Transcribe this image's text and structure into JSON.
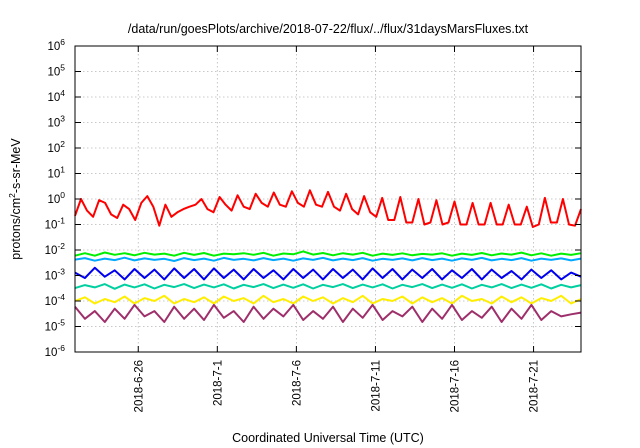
{
  "chart_data": {
    "type": "line",
    "title": "/data/run/goesPlots/archive/2018-07-22/flux/../flux/31daysMarsFluxes.txt",
    "xlabel": "Coordinated Universal Time (UTC)",
    "ylabel": {
      "pre": "protons/cm",
      "sup": "2",
      "post": "-s-sr-MeV"
    },
    "yscale": "log",
    "ylim": [
      1e-06,
      1000000.0
    ],
    "xlim": [
      "2018-06-22",
      "2018-07-24"
    ],
    "grid": true,
    "y_ticks": [
      {
        "base": "10",
        "exp": "-6"
      },
      {
        "base": "10",
        "exp": "-5"
      },
      {
        "base": "10",
        "exp": "-4"
      },
      {
        "base": "10",
        "exp": "-3"
      },
      {
        "base": "10",
        "exp": "-2"
      },
      {
        "base": "10",
        "exp": "-1"
      },
      {
        "base": "10",
        "exp": "0"
      },
      {
        "base": "10",
        "exp": "1"
      },
      {
        "base": "10",
        "exp": "2"
      },
      {
        "base": "10",
        "exp": "3"
      },
      {
        "base": "10",
        "exp": "4"
      },
      {
        "base": "10",
        "exp": "5"
      },
      {
        "base": "10",
        "exp": "6"
      }
    ],
    "x_ticks": [
      "2018-6-26",
      "2018-7-1",
      "2018-7-6",
      "2018-7-11",
      "2018-7-16",
      "2018-7-21"
    ],
    "series": [
      {
        "color": "#ff0000",
        "values": [
          0.22,
          1.0,
          0.35,
          0.2,
          0.9,
          0.7,
          0.25,
          0.18,
          0.6,
          0.4,
          0.15,
          0.7,
          1.3,
          0.5,
          0.09,
          0.6,
          0.2,
          0.3,
          0.4,
          0.5,
          0.6,
          1.0,
          0.4,
          0.3,
          1.2,
          0.6,
          0.35,
          1.4,
          0.5,
          0.4,
          1.6,
          0.7,
          0.5,
          1.8,
          0.6,
          0.5,
          2.0,
          0.7,
          0.5,
          2.2,
          0.6,
          0.5,
          1.9,
          0.5,
          0.35,
          1.6,
          0.4,
          0.25,
          1.3,
          0.3,
          0.2,
          1.1,
          0.15,
          0.15,
          1.2,
          0.12,
          0.12,
          1.0,
          0.1,
          0.12,
          0.9,
          0.1,
          0.12,
          0.8,
          0.1,
          0.1,
          0.7,
          0.1,
          0.1,
          0.7,
          0.1,
          0.1,
          0.6,
          0.1,
          0.1,
          0.5,
          0.08,
          0.1,
          1.1,
          0.12,
          0.12,
          1.0,
          0.1,
          0.09,
          0.4
        ]
      },
      {
        "color": "#00ee00",
        "values": [
          0.006,
          0.0075,
          0.006,
          0.008,
          0.0065,
          0.0075,
          0.0062,
          0.0078,
          0.0066,
          0.0072,
          0.006,
          0.0078,
          0.0064,
          0.0076,
          0.006,
          0.0072,
          0.0068,
          0.0075,
          0.0065,
          0.0078,
          0.006,
          0.0073,
          0.0068,
          0.0088,
          0.0066,
          0.0076,
          0.0062,
          0.0075,
          0.0066,
          0.0078,
          0.006,
          0.0072,
          0.0064,
          0.0074,
          0.0062,
          0.007,
          0.0066,
          0.0074,
          0.006,
          0.0072,
          0.0064,
          0.0076,
          0.0062,
          0.0073,
          0.0066,
          0.0079,
          0.0062,
          0.0074,
          0.006,
          0.0072,
          0.0064,
          0.0075
        ]
      },
      {
        "color": "#00a8ff",
        "values": [
          0.0042,
          0.0048,
          0.0038,
          0.0046,
          0.004,
          0.005,
          0.0039,
          0.0047,
          0.0041,
          0.0045,
          0.0037,
          0.0048,
          0.004,
          0.0046,
          0.0038,
          0.0049,
          0.0041,
          0.0045,
          0.0039,
          0.0048,
          0.004,
          0.0046,
          0.0038,
          0.0047,
          0.0041,
          0.0049,
          0.0039,
          0.0046,
          0.004,
          0.0048,
          0.0038,
          0.0045,
          0.0041,
          0.0047,
          0.0039,
          0.0048,
          0.004,
          0.0046,
          0.0038,
          0.0047,
          0.0041,
          0.0049,
          0.0039,
          0.0045,
          0.004,
          0.0048,
          0.0038,
          0.0046,
          0.0041,
          0.0047,
          0.0039,
          0.0046
        ]
      },
      {
        "color": "#0000ee",
        "values": [
          0.0013,
          0.0008,
          0.002,
          0.0009,
          0.0016,
          0.0007,
          0.0018,
          0.0008,
          0.0017,
          0.0007,
          0.0019,
          0.0008,
          0.0018,
          0.0007,
          0.0019,
          0.0008,
          0.0017,
          0.0007,
          0.0018,
          0.0008,
          0.0016,
          0.0007,
          0.0018,
          0.0008,
          0.0017,
          0.0007,
          0.0018,
          0.0008,
          0.0017,
          0.0007,
          0.0019,
          0.0008,
          0.0018,
          0.0007,
          0.0017,
          0.0008,
          0.0018,
          0.0007,
          0.0016,
          0.0008,
          0.0018,
          0.0007,
          0.0017,
          0.0008,
          0.0015,
          0.0007,
          0.0017,
          0.0008,
          0.0016,
          0.0007,
          0.0013,
          0.0009
        ]
      },
      {
        "color": "#00cfa0",
        "values": [
          0.00032,
          0.00042,
          0.00034,
          0.00046,
          0.0003,
          0.00044,
          0.00034,
          0.00045,
          0.00031,
          0.00043,
          0.00035,
          0.00046,
          0.00032,
          0.00044,
          0.00034,
          0.00045,
          0.00031,
          0.00043,
          0.00035,
          0.00046,
          0.00032,
          0.00044,
          0.00033,
          0.00045,
          0.00031,
          0.00043,
          0.00035,
          0.00046,
          0.00032,
          0.00044,
          0.00034,
          0.00045,
          0.00031,
          0.00043,
          0.00035,
          0.00046,
          0.00032,
          0.00044,
          0.00033,
          0.00045,
          0.00031,
          0.00043,
          0.00034,
          0.00046,
          0.00032,
          0.00044,
          0.00033,
          0.00045,
          0.00031,
          0.00043,
          0.00034,
          0.00042
        ]
      },
      {
        "color": "#ffee00",
        "values": [
          0.0001,
          0.00014,
          8e-05,
          0.00012,
          9e-05,
          0.00015,
          8e-05,
          0.00013,
          0.0001,
          0.00016,
          8e-05,
          0.00012,
          9e-05,
          0.00014,
          8e-05,
          0.00015,
          0.0001,
          0.00013,
          8e-05,
          0.00016,
          9e-05,
          0.00012,
          8e-05,
          0.00015,
          0.0001,
          0.00014,
          8e-05,
          0.00013,
          9e-05,
          0.00016,
          8e-05,
          0.00012,
          0.0001,
          0.00015,
          8e-05,
          0.00014,
          9e-05,
          0.00013,
          8e-05,
          0.00016,
          0.0001,
          0.00012,
          8e-05,
          0.00015,
          9e-05,
          0.00014,
          8e-05,
          0.00013,
          0.0001,
          0.00016,
          8e-05,
          0.00012
        ]
      },
      {
        "color": "#9e2f6b",
        "values": [
          6e-05,
          2e-05,
          4e-05,
          1.5e-05,
          5e-05,
          2e-05,
          7e-05,
          2.5e-05,
          4e-05,
          1.5e-05,
          6e-05,
          2e-05,
          5e-05,
          1.8e-05,
          7e-05,
          2.2e-05,
          4e-05,
          1.5e-05,
          6e-05,
          2e-05,
          5e-05,
          2.5e-05,
          7e-05,
          1.8e-05,
          4e-05,
          2e-05,
          6e-05,
          1.5e-05,
          5e-05,
          2.2e-05,
          7e-05,
          1.8e-05,
          4e-05,
          2.5e-05,
          6e-05,
          1.5e-05,
          5e-05,
          2e-05,
          7e-05,
          1.8e-05,
          4e-05,
          2.2e-05,
          6e-05,
          1.5e-05,
          5e-05,
          2e-05,
          7e-05,
          1.8e-05,
          4e-05,
          2.5e-05,
          3e-05,
          3.5e-05
        ]
      }
    ]
  }
}
